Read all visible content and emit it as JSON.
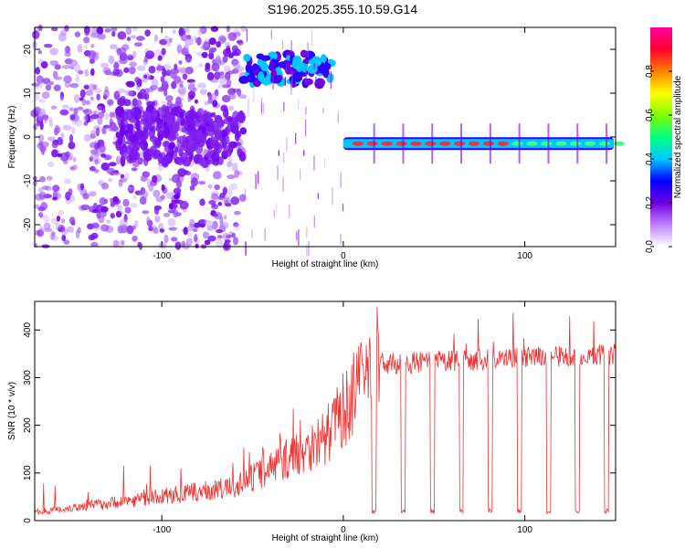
{
  "title": "S196.2025.355.10.59.G14",
  "colors": {
    "line": "#ee3333",
    "spectrogram_low": "#c9a8f2",
    "spectrogram_high": "#ff2a3a",
    "colormap": [
      "#ffffff",
      "#c080ff",
      "#7000e0",
      "#0000ff",
      "#00c8ff",
      "#00ff80",
      "#80ff00",
      "#ffff00",
      "#ff8000",
      "#ff0030",
      "#ff00a0"
    ]
  },
  "chart_data": [
    {
      "type": "heatmap",
      "xlabel": "Height of straight line (km)",
      "ylabel": "Frequency (Hz)",
      "xlim": [
        -170,
        150
      ],
      "ylim": [
        -25,
        25
      ],
      "xticks": [
        -100,
        0,
        100
      ],
      "yticks": [
        -20,
        -10,
        0,
        10,
        20
      ],
      "colorbar": {
        "label": "Normalized spectral amplitude",
        "range": [
          0,
          1
        ],
        "ticks": [
          "0.0",
          "0.2",
          "0.4",
          "0.6",
          "0.8"
        ],
        "tick_values": [
          0,
          0.2,
          0.4,
          0.6,
          0.8
        ]
      },
      "features": [
        {
          "x": [
            -170,
            -55
          ],
          "freq": 0,
          "amp": 0.2
        },
        {
          "x": [
            -55,
            -5
          ],
          "freq": 15,
          "amp": 0.4
        },
        {
          "x": [
            0,
            150
          ],
          "freq": -1.5,
          "amp": 0.9
        }
      ]
    },
    {
      "type": "line",
      "xlabel": "Height of straight line (km)",
      "ylabel": "SNR (10 * v/v)",
      "xlim": [
        -170,
        150
      ],
      "ylim": [
        0,
        460
      ],
      "xticks": [
        -100,
        0,
        100
      ],
      "yticks": [
        0,
        100,
        200,
        300,
        400
      ],
      "dropouts_x": [
        17,
        33,
        49,
        65,
        81,
        97,
        113,
        129,
        145
      ],
      "segments": [
        {
          "x": [
            -170,
            -60
          ],
          "snr": [
            15,
            60
          ]
        },
        {
          "x": [
            -60,
            -10
          ],
          "snr": [
            60,
            150
          ]
        },
        {
          "x": [
            -10,
            20
          ],
          "snr": [
            150,
            300
          ]
        },
        {
          "x": [
            20,
            150
          ],
          "snr": [
            320,
            340
          ]
        }
      ]
    }
  ]
}
